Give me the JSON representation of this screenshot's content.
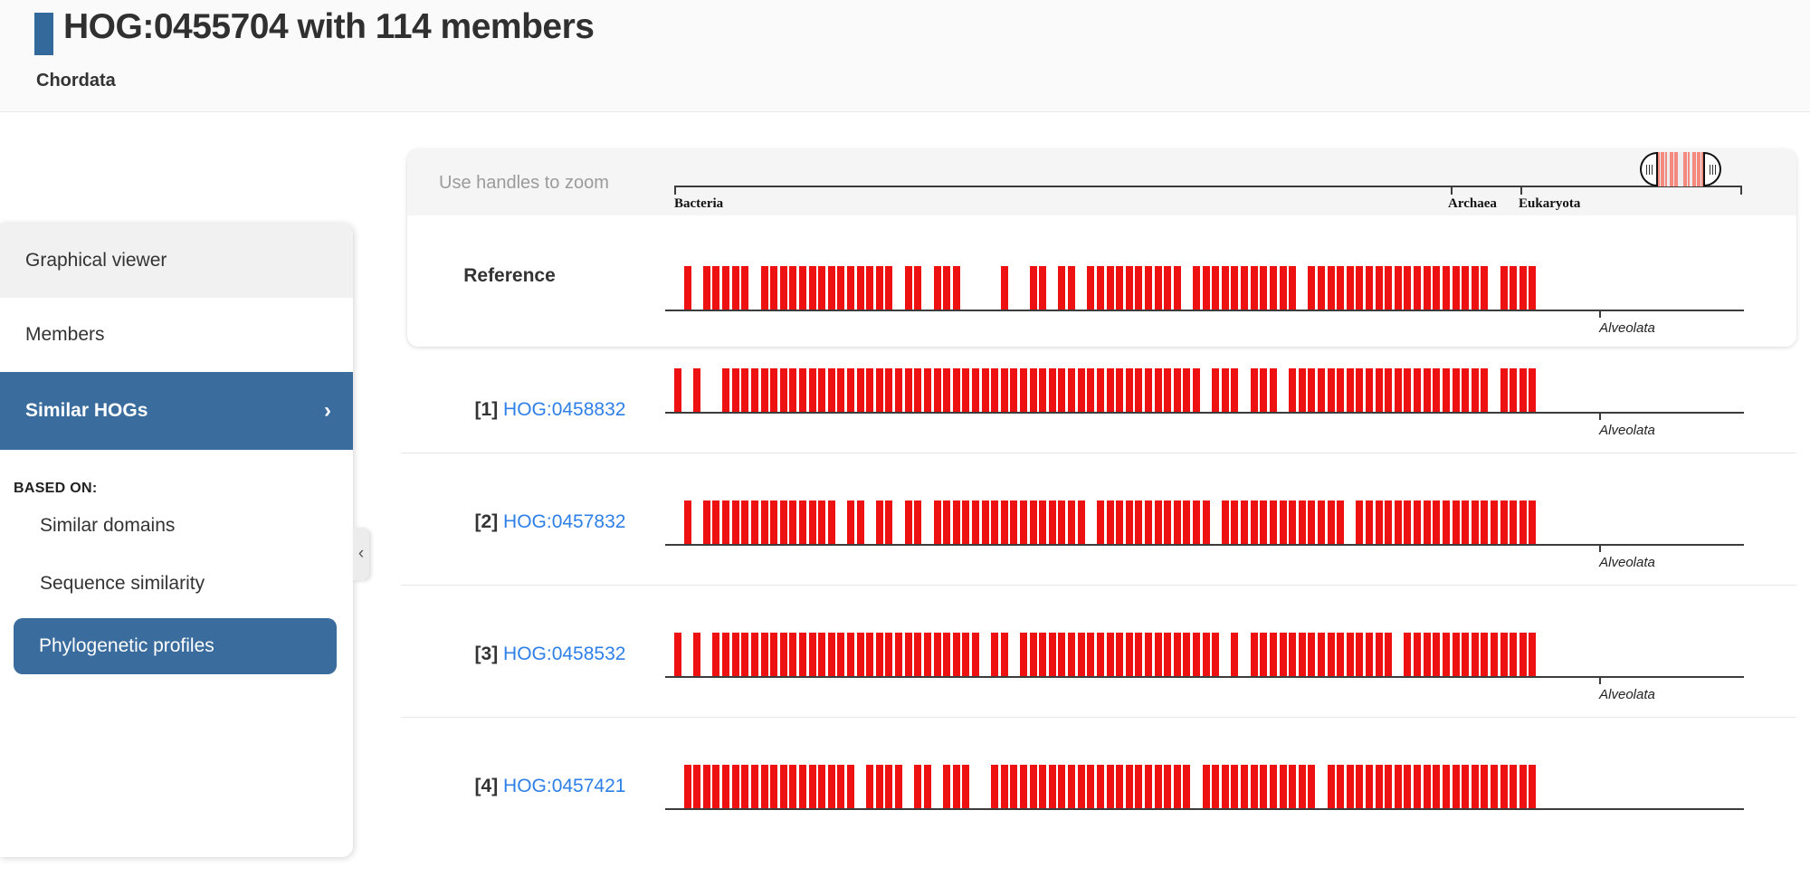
{
  "header": {
    "title": "HOG:0455704 with 114 members",
    "subtitle": "Chordata",
    "accent_color": "#34699b"
  },
  "sidebar": {
    "items": [
      {
        "label": "Graphical viewer",
        "active": false
      },
      {
        "label": "Members",
        "active": false
      },
      {
        "label": "Similar HOGs",
        "active": true,
        "chevron": "›"
      }
    ],
    "section_label": "BASED ON:",
    "sub_items": [
      {
        "label": "Similar domains",
        "active": false
      },
      {
        "label": "Sequence similarity",
        "active": false
      },
      {
        "label": "Phylogenetic profiles",
        "active": true
      }
    ],
    "collapse_icon": "‹",
    "accent_color": "#3a6d9e"
  },
  "zoom_panel": {
    "hint": "Use handles to zoom",
    "axis": {
      "labels": [
        {
          "text": "Bacteria",
          "pos": 0.0
        },
        {
          "text": "Archaea",
          "pos": 0.727
        },
        {
          "text": "Eukaryota",
          "pos": 0.792
        }
      ]
    },
    "brush": {
      "pattern": "11110111100111011111",
      "stripe_color": "#f4897f"
    }
  },
  "chart_data": {
    "type": "bar",
    "subtype": "presence-absence phylogenetic profile barcode",
    "bar_color": "#ee1111",
    "x_domains": [
      "Bacteria",
      "Archaea",
      "Eukaryota"
    ],
    "note": "pattern strings: 1 = species present (red bar), 0 = absent, ~90 taxa slots left-to-right",
    "profiles": [
      {
        "label": "Reference",
        "hog_id": "",
        "pattern": "010111110111111111111110110111000010011011011111111110111111111110111111111111111111101111",
        "tick_label": "Alveolata",
        "has_tick": true
      },
      {
        "index_label": "[1]",
        "hog_id": "HOG:0458832",
        "pattern": "101001111111111111111111111111111111111111111111111111101110111011111111111111111111101111",
        "tick_label": "Alveolata",
        "has_tick": true
      },
      {
        "index_label": "[2]",
        "hog_id": "HOG:0457832",
        "pattern": "010111111111111110110110110111111111111111101111111111110111111111111101111111111111111111",
        "tick_label": "Alveolata",
        "has_tick": true
      },
      {
        "index_label": "[3]",
        "hog_id": "HOG:0458532",
        "pattern": "101011111111111111111111111111110110111111111111111111111010111111111111111011111111111111",
        "tick_label": "Alveolata",
        "has_tick": true
      },
      {
        "index_label": "[4]",
        "hog_id": "HOG:0457421",
        "pattern": "011111111111111111101111011011100111111111111111111111011111111111101111111111111111111111",
        "tick_label": "",
        "has_tick": false
      }
    ]
  }
}
